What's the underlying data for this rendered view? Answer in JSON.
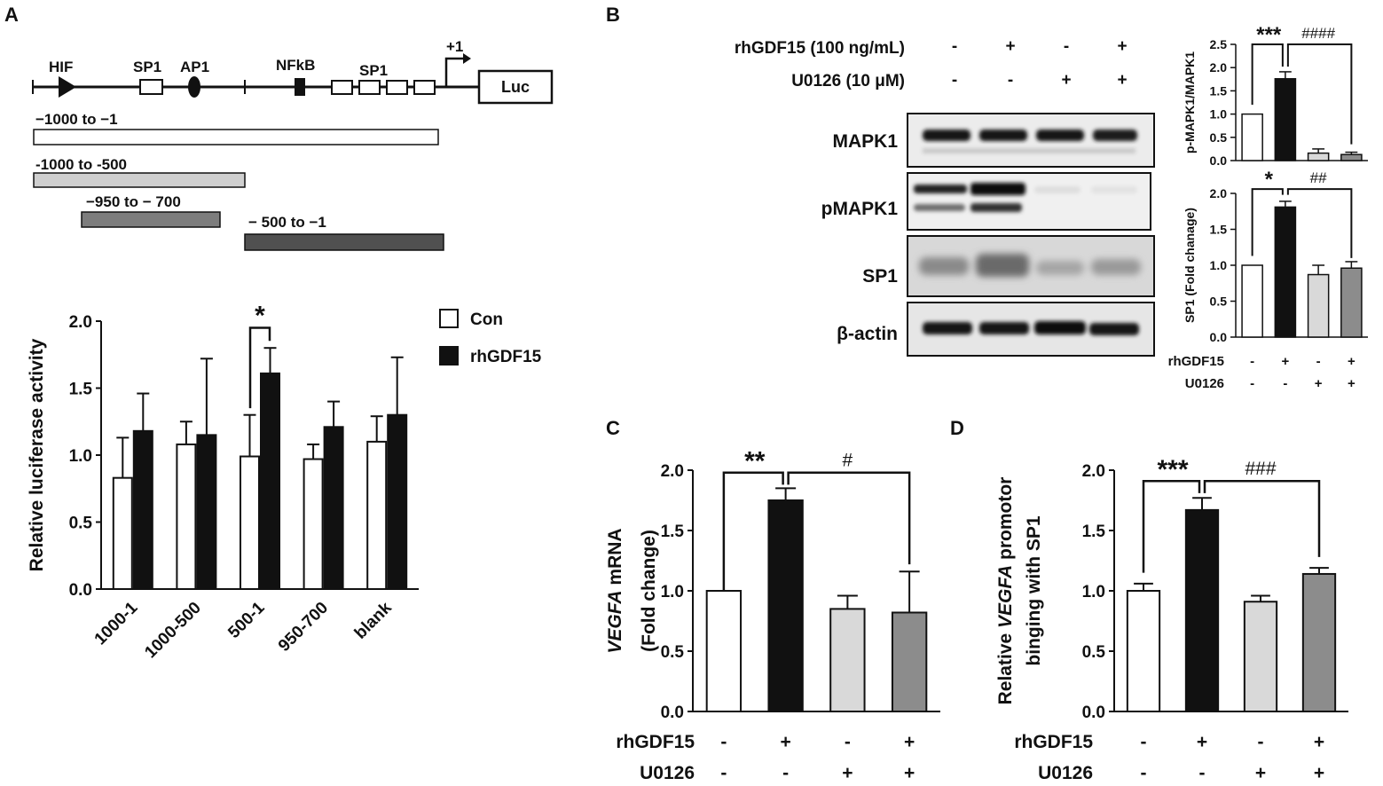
{
  "panel_labels": {
    "a": "A",
    "b": "B",
    "c": "C",
    "d": "D"
  },
  "promoter_diagram": {
    "sites": [
      "HIF",
      "SP1",
      "AP1",
      "NFkB",
      "SP1"
    ],
    "tss_label": "+1",
    "reporter_label": "Luc",
    "constructs": [
      {
        "label": "−1000 to −1",
        "color": "#ffffff"
      },
      {
        "label": "-1000 to -500",
        "color": "#cfcfcf"
      },
      {
        "label": "−950 to − 700",
        "color": "#7d7d7d"
      },
      {
        "label": "− 500 to −1",
        "color": "#505050"
      }
    ]
  },
  "blot": {
    "treatments": [
      {
        "label": "rhGDF15 (100 ng/mL)",
        "signs": [
          "-",
          "+",
          "-",
          "+"
        ]
      },
      {
        "label": "U0126 (10 μM)",
        "signs": [
          "-",
          "-",
          "+",
          "+"
        ]
      }
    ],
    "rows": [
      "MAPK1",
      "pMAPK1",
      "SP1",
      "β-actin"
    ]
  },
  "chart_data": [
    {
      "id": "A",
      "type": "bar",
      "categories": [
        "1000-1",
        "1000-500",
        "500-1",
        "950-700",
        "blank"
      ],
      "series": [
        {
          "name": "Con",
          "color": "#ffffff",
          "values": [
            0.83,
            1.08,
            0.99,
            0.97,
            1.1
          ],
          "errors": [
            0.3,
            0.17,
            0.31,
            0.11,
            0.19
          ]
        },
        {
          "name": "rhGDF15",
          "color": "#111111",
          "values": [
            1.18,
            1.15,
            1.61,
            1.21,
            1.3
          ],
          "errors": [
            0.28,
            0.57,
            0.19,
            0.19,
            0.43
          ]
        }
      ],
      "ylabel": "Relative luciferase activity",
      "ylim": [
        0,
        2.0
      ],
      "yticks": [
        "0.0",
        "0.5",
        "1.0",
        "1.5",
        "2.0"
      ],
      "annotation": "*"
    },
    {
      "id": "B1",
      "type": "bar",
      "categories": [
        "1",
        "2",
        "3",
        "4"
      ],
      "colors": [
        "#ffffff",
        "#111111",
        "#d9d9d9",
        "#8c8c8c"
      ],
      "values": [
        1.0,
        1.76,
        0.16,
        0.13
      ],
      "errors": [
        0,
        0.15,
        0.09,
        0.05
      ],
      "ylabel": "p-MAPK1/MAPK1",
      "ylim": [
        0,
        2.5
      ],
      "yticks": [
        "0.0",
        "0.5",
        "1.0",
        "1.5",
        "2.0",
        "2.5"
      ],
      "annotations": [
        "***",
        "####"
      ]
    },
    {
      "id": "B2",
      "type": "bar",
      "categories": [
        "1",
        "2",
        "3",
        "4"
      ],
      "colors": [
        "#ffffff",
        "#111111",
        "#d9d9d9",
        "#8c8c8c"
      ],
      "values": [
        1.0,
        1.81,
        0.87,
        0.96
      ],
      "errors": [
        0,
        0.08,
        0.13,
        0.09
      ],
      "ylabel": "SP1 (Fold chanage)",
      "ylim": [
        0,
        2.0
      ],
      "yticks": [
        "0.0",
        "0.5",
        "1.0",
        "1.5",
        "2.0"
      ],
      "annotations": [
        "*",
        "##"
      ],
      "treatments": [
        {
          "label": "rhGDF15",
          "signs": [
            "-",
            "+",
            "-",
            "+"
          ]
        },
        {
          "label": "U0126",
          "signs": [
            "-",
            "-",
            "+",
            "+"
          ]
        }
      ]
    },
    {
      "id": "C",
      "type": "bar",
      "categories": [
        "1",
        "2",
        "3",
        "4"
      ],
      "colors": [
        "#ffffff",
        "#111111",
        "#d9d9d9",
        "#8c8c8c"
      ],
      "values": [
        1.0,
        1.75,
        0.85,
        0.82
      ],
      "errors": [
        0,
        0.1,
        0.11,
        0.34
      ],
      "ylabel_italic": "VEGFA",
      "ylabel_rest": " mRNA",
      "ylabel2": "(Fold change)",
      "ylim": [
        0,
        2.0
      ],
      "yticks": [
        "0.0",
        "0.5",
        "1.0",
        "1.5",
        "2.0"
      ],
      "annotations": [
        "**",
        "#"
      ],
      "treatments": [
        {
          "label": "rhGDF15",
          "signs": [
            "-",
            "+",
            "-",
            "+"
          ]
        },
        {
          "label": "U0126",
          "signs": [
            "-",
            "-",
            "+",
            "+"
          ]
        }
      ]
    },
    {
      "id": "D",
      "type": "bar",
      "categories": [
        "1",
        "2",
        "3",
        "4"
      ],
      "colors": [
        "#ffffff",
        "#111111",
        "#d9d9d9",
        "#8c8c8c"
      ],
      "values": [
        1.0,
        1.67,
        0.91,
        1.14
      ],
      "errors": [
        0.06,
        0.1,
        0.05,
        0.05
      ],
      "ylabel_pre": "Relative ",
      "ylabel_italic": "VEGFA",
      "ylabel_rest": " promotor",
      "ylabel2": "binging with SP1",
      "ylim": [
        0,
        2.0
      ],
      "yticks": [
        "0.0",
        "0.5",
        "1.0",
        "1.5",
        "2.0"
      ],
      "annotations": [
        "***",
        "###"
      ],
      "treatments": [
        {
          "label": "rhGDF15",
          "signs": [
            "-",
            "+",
            "-",
            "+"
          ]
        },
        {
          "label": "U0126",
          "signs": [
            "-",
            "-",
            "+",
            "+"
          ]
        }
      ]
    }
  ]
}
